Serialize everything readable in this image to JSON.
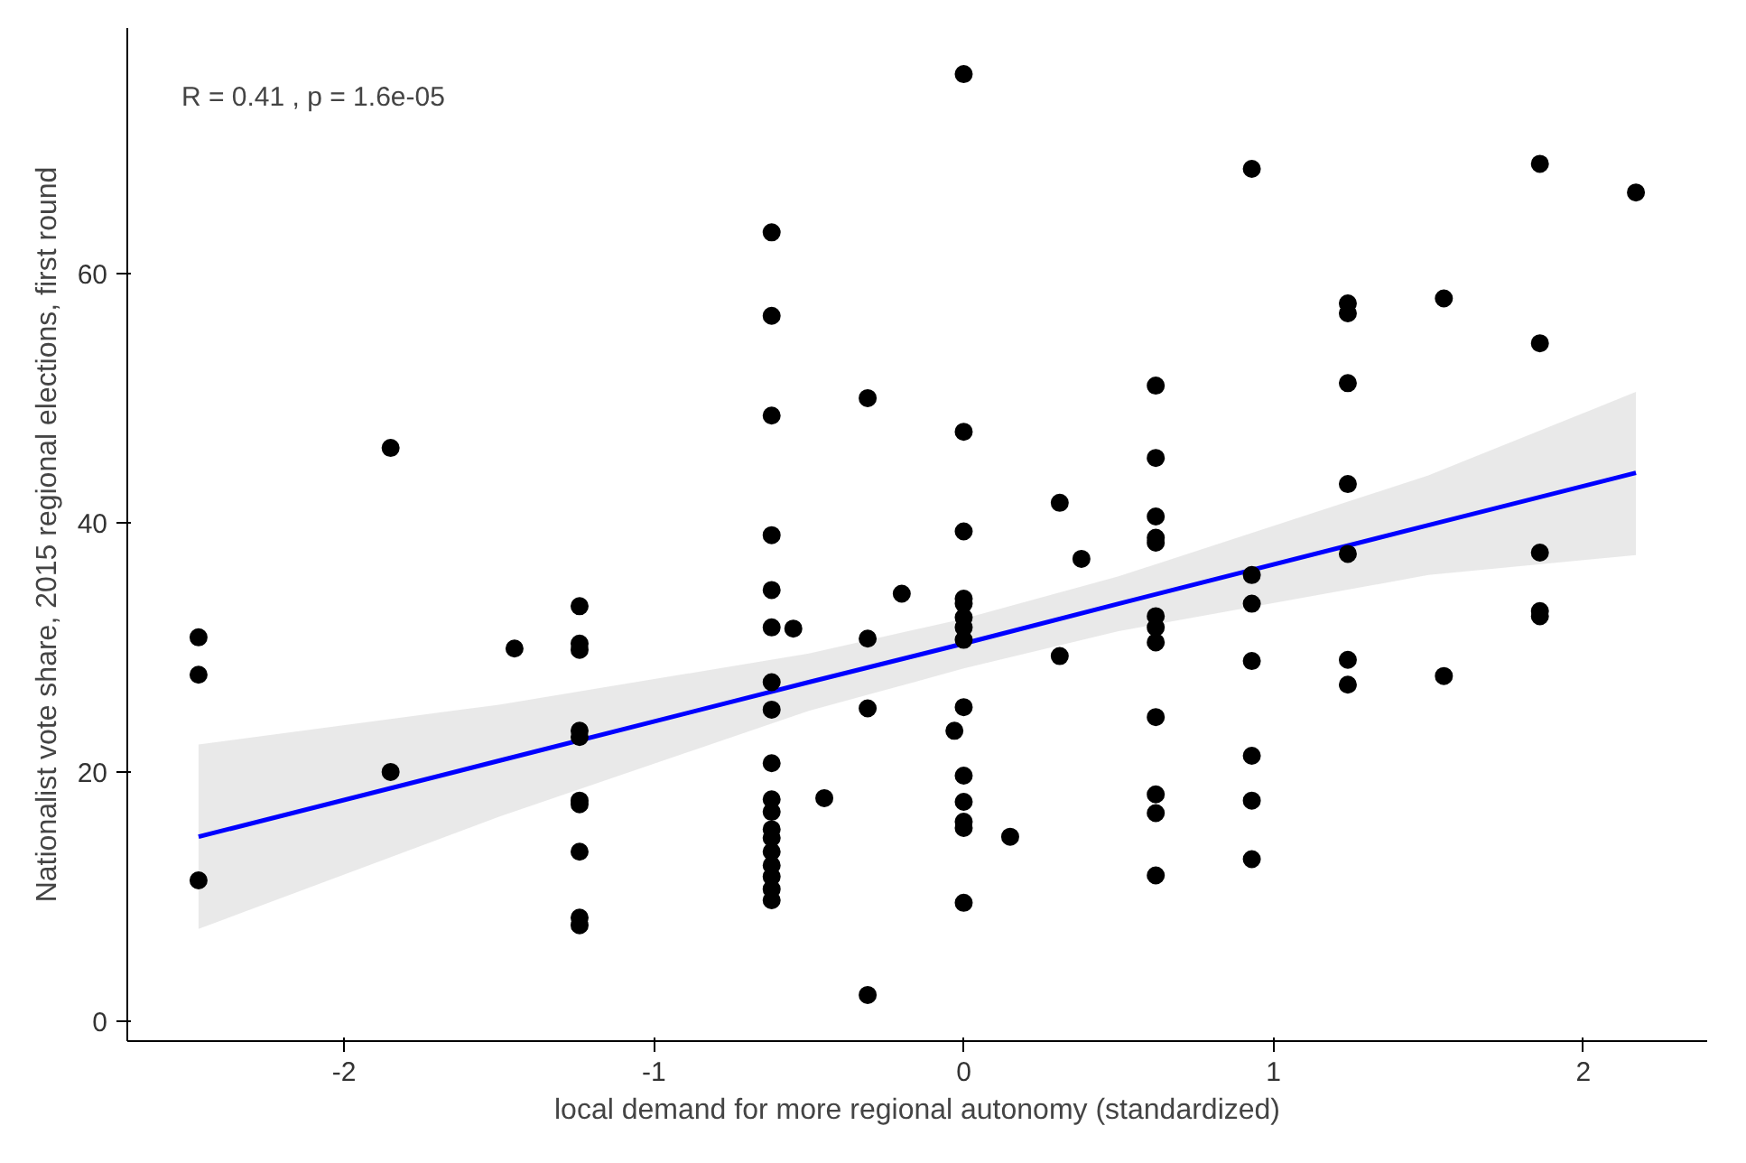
{
  "chart_data": {
    "type": "scatter",
    "xlabel": "local demand for more regional autonomy (standardized)",
    "ylabel": "Nationalist vote share, 2015 regional elections, first round",
    "xlim": [
      -2.7,
      2.4
    ],
    "ylim": [
      -1.6,
      79.7
    ],
    "xticks": [
      -2,
      -1,
      0,
      1,
      2
    ],
    "yticks": [
      0,
      20,
      40,
      60
    ],
    "grid": false,
    "annotations": [
      "R = 0.41 , p = 1.6e-05"
    ],
    "series": [
      {
        "color": "#000000",
        "marker": "circle",
        "x": [
          -2.47,
          -2.47,
          -2.47,
          -1.85,
          -1.85,
          -1.45,
          -1.24,
          -1.24,
          -1.24,
          -1.24,
          -1.24,
          -1.24,
          -1.24,
          -1.24,
          -1.24,
          -1.24,
          -0.62,
          -0.62,
          -0.62,
          -0.62,
          -0.62,
          -0.62,
          -0.62,
          -0.62,
          -0.62,
          -0.62,
          -0.62,
          -0.62,
          -0.62,
          -0.62,
          -0.62,
          -0.62,
          -0.62,
          -0.62,
          -0.55,
          -0.45,
          -0.31,
          -0.31,
          -0.31,
          -0.31,
          -0.2,
          0,
          0,
          0,
          0,
          0,
          0,
          0,
          0,
          0,
          -0.03,
          0,
          0,
          0,
          0,
          0,
          0.15,
          0.31,
          0.31,
          0.38,
          0.62,
          0.62,
          0.62,
          0.62,
          0.62,
          0.62,
          0.62,
          0.62,
          0.62,
          0.62,
          0.62,
          0.62,
          0.93,
          0.93,
          0.93,
          0.93,
          0.93,
          0.93,
          0.93,
          1.24,
          1.24,
          1.24,
          1.24,
          1.24,
          1.24,
          1.24,
          1.55,
          1.55,
          1.86,
          1.86,
          1.86,
          1.86,
          1.86,
          2.17
        ],
        "values": [
          30.8,
          27.8,
          11.3,
          46,
          20,
          29.9,
          33.3,
          30.3,
          29.8,
          23.3,
          22.8,
          17.7,
          17.4,
          13.6,
          8.3,
          7.7,
          63.3,
          56.6,
          48.6,
          39,
          34.6,
          31.6,
          27.2,
          25,
          20.7,
          17.8,
          16.8,
          15.4,
          14.7,
          13.6,
          12.5,
          11.6,
          10.6,
          9.7,
          31.5,
          17.9,
          50,
          30.7,
          25.1,
          2.1,
          34.3,
          76,
          47.3,
          39.3,
          33.9,
          33.5,
          32.4,
          31.6,
          30.6,
          25.2,
          23.3,
          19.7,
          17.6,
          16,
          15.5,
          9.5,
          14.8,
          41.6,
          29.3,
          37.1,
          51,
          45.2,
          40.5,
          38.8,
          38.4,
          32.5,
          31.6,
          30.4,
          24.4,
          18.2,
          16.7,
          11.7,
          68.4,
          35.8,
          33.5,
          28.9,
          21.3,
          17.7,
          13,
          57.6,
          56.8,
          51.2,
          43.1,
          37.5,
          29,
          27,
          58,
          27.7,
          68.8,
          54.4,
          37.6,
          32.9,
          32.5,
          66.5
        ]
      },
      {
        "type": "line",
        "marker": "none",
        "color": "#0000ff",
        "x": [
          -2.47,
          -1.5,
          -0.5,
          0,
          0.5,
          1.5,
          2.17
        ],
        "values": [
          14.8,
          20.9,
          27.2,
          30.3,
          33.5,
          39.8,
          44
        ],
        "lower": [
          7.4,
          16.4,
          24.9,
          28.3,
          31.3,
          35.8,
          37.4
        ],
        "upper": [
          22.2,
          25.4,
          29.5,
          32.3,
          35.7,
          43.8,
          50.5
        ]
      }
    ]
  }
}
